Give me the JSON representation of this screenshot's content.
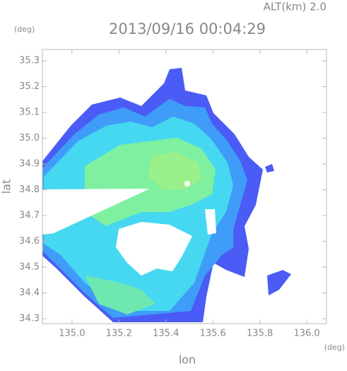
{
  "chart_data": {
    "type": "heatmap",
    "title": "2013/09/16 00:04:29",
    "subtitle": "ALT(km) 2.0",
    "xlabel": "lon",
    "ylabel": "lat",
    "x_unit": "(deg)",
    "y_unit": "(deg)",
    "xlim": [
      134.874,
      136.084
    ],
    "ylim": [
      34.281,
      35.344
    ],
    "xticks": [
      {
        "value": 135,
        "label": "135.0"
      },
      135.2,
      135.4,
      135.6,
      135.8,
      {
        "value": 136,
        "label": "136.0"
      }
    ],
    "yticks": [
      34.3,
      34.4,
      34.5,
      34.6,
      34.7,
      34.8,
      34.9,
      {
        "value": 35,
        "label": "35.0"
      },
      35.1,
      35.2,
      35.3
    ]
  }
}
